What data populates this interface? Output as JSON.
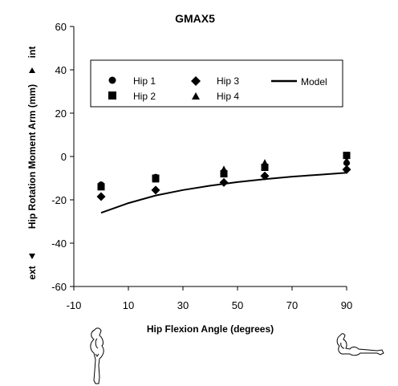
{
  "chart_data": {
    "type": "scatter",
    "title": "GMAX5",
    "xlabel": "Hip Flexion Angle (degrees)",
    "ylabel": "Hip Rotation Moment Arm (mm)",
    "ylabel_top": "int",
    "ylabel_bottom": "ext",
    "xlim": [
      -10,
      90
    ],
    "ylim": [
      -60,
      60
    ],
    "xticks": [
      -10,
      10,
      30,
      50,
      70,
      90
    ],
    "yticks": [
      -60,
      -40,
      -20,
      0,
      20,
      40,
      60
    ],
    "grid": false,
    "legend_position": "top",
    "series": [
      {
        "name": "Hip 1",
        "marker": "circle",
        "x": [
          0,
          20,
          45,
          60,
          90
        ],
        "y": [
          -13,
          -9.5,
          -7,
          -4.5,
          -3
        ]
      },
      {
        "name": "Hip 2",
        "marker": "square",
        "x": [
          0,
          20,
          45,
          60,
          90
        ],
        "y": [
          -14,
          -10,
          -8,
          -5,
          0.5
        ]
      },
      {
        "name": "Hip 3",
        "marker": "diamond",
        "x": [
          0,
          20,
          45,
          60,
          90
        ],
        "y": [
          -18.5,
          -15.5,
          -12,
          -9,
          -6
        ]
      },
      {
        "name": "Hip 4",
        "marker": "triangle",
        "x": [
          0,
          20,
          45,
          60,
          90
        ],
        "y": [
          -14,
          -10.5,
          -6,
          -3,
          -2
        ]
      },
      {
        "name": "Model",
        "marker": "line",
        "x": [
          0,
          10,
          20,
          30,
          40,
          50,
          60,
          70,
          80,
          90
        ],
        "y": [
          -26,
          -21.5,
          -18,
          -15.5,
          -13.5,
          -11.8,
          -10.5,
          -9.3,
          -8.4,
          -7.5
        ]
      }
    ]
  }
}
